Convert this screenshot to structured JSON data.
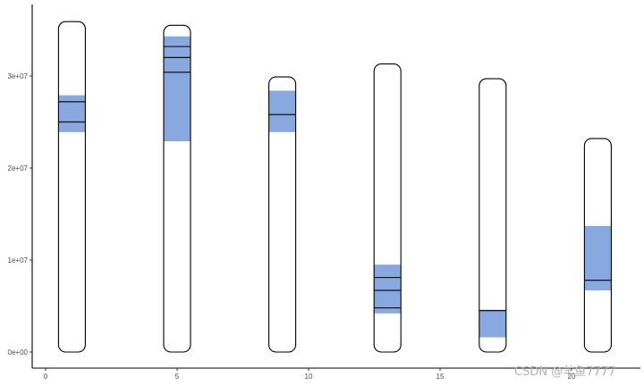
{
  "chart_data": {
    "type": "ideogram",
    "title": "",
    "xlabel": "",
    "ylabel": "",
    "xlim": [
      -1,
      22.7
    ],
    "ylim": [
      -1800000,
      37500000
    ],
    "x_ticks": [
      0,
      5,
      10,
      15,
      20
    ],
    "x_tick_labels": [
      "0",
      "5",
      "10",
      "15",
      "20"
    ],
    "y_ticks": [
      0,
      10000000,
      20000000,
      30000000
    ],
    "y_tick_labels": [
      "0e+00",
      "1e+07",
      "2e+07",
      "3e+07"
    ],
    "grid": false,
    "legend": null,
    "highlight_color": "#88a9e0",
    "chromosomes": [
      {
        "x": 1,
        "length": 35900000,
        "band": [
          23900000,
          27900000
        ],
        "markers": [
          27200000,
          25000000
        ]
      },
      {
        "x": 5,
        "length": 35500000,
        "band": [
          22900000,
          34300000
        ],
        "markers": [
          33200000,
          32000000,
          30400000
        ]
      },
      {
        "x": 9,
        "length": 29900000,
        "band": [
          23900000,
          28400000
        ],
        "markers": [
          25800000
        ]
      },
      {
        "x": 13,
        "length": 31300000,
        "band": [
          4200000,
          9500000
        ],
        "markers": [
          8100000,
          6700000,
          4800000
        ]
      },
      {
        "x": 17,
        "length": 29700000,
        "band": [
          1600000,
          4600000
        ],
        "markers": [
          4500000
        ]
      },
      {
        "x": 21,
        "length": 23200000,
        "band": [
          6700000,
          13700000
        ],
        "markers": [
          7800000
        ]
      }
    ]
  },
  "watermark": "CSDN @羊鱼7777"
}
